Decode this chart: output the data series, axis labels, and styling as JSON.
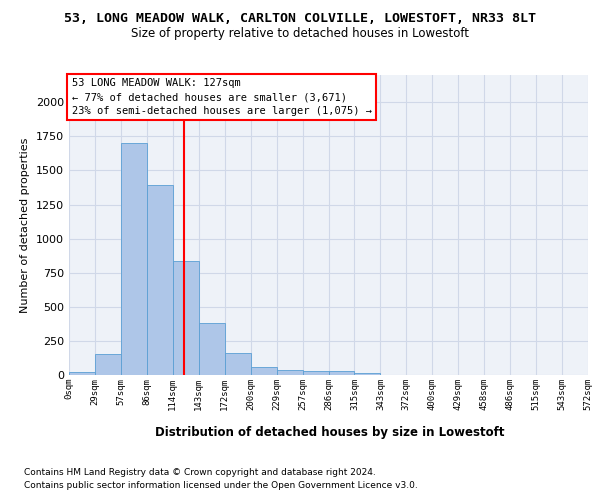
{
  "title1": "53, LONG MEADOW WALK, CARLTON COLVILLE, LOWESTOFT, NR33 8LT",
  "title2": "Size of property relative to detached houses in Lowestoft",
  "xlabel": "Distribution of detached houses by size in Lowestoft",
  "ylabel": "Number of detached properties",
  "footer1": "Contains HM Land Registry data © Crown copyright and database right 2024.",
  "footer2": "Contains public sector information licensed under the Open Government Licence v3.0.",
  "annotation_line1": "53 LONG MEADOW WALK: 127sqm",
  "annotation_line2": "← 77% of detached houses are smaller (3,671)",
  "annotation_line3": "23% of semi-detached houses are larger (1,075) →",
  "property_size": 127,
  "bin_edges": [
    0,
    28.6,
    57.2,
    85.8,
    114.4,
    143.0,
    171.6,
    200.2,
    228.8,
    257.4,
    286.0,
    314.6,
    343.2,
    371.8,
    400.4,
    429.0,
    457.6,
    486.2,
    514.8,
    543.4,
    572.0
  ],
  "bar_heights": [
    20,
    155,
    1700,
    1390,
    835,
    385,
    165,
    62,
    35,
    28,
    28,
    18,
    0,
    0,
    0,
    0,
    0,
    0,
    0,
    0
  ],
  "bar_color": "#aec6e8",
  "bar_edge_color": "#5a9fd4",
  "vline_color": "red",
  "grid_color": "#d0d8e8",
  "bg_color": "#eef2f8",
  "ylim": [
    0,
    2200
  ],
  "xlim": [
    0,
    572
  ],
  "tick_labels": [
    "0sqm",
    "29sqm",
    "57sqm",
    "86sqm",
    "114sqm",
    "143sqm",
    "172sqm",
    "200sqm",
    "229sqm",
    "257sqm",
    "286sqm",
    "315sqm",
    "343sqm",
    "372sqm",
    "400sqm",
    "429sqm",
    "458sqm",
    "486sqm",
    "515sqm",
    "543sqm",
    "572sqm"
  ],
  "title1_fontsize": 9.5,
  "title2_fontsize": 8.5,
  "ylabel_fontsize": 8,
  "xlabel_fontsize": 8.5,
  "footer_fontsize": 6.5,
  "tick_fontsize": 6.5,
  "annotation_fontsize": 7.5
}
